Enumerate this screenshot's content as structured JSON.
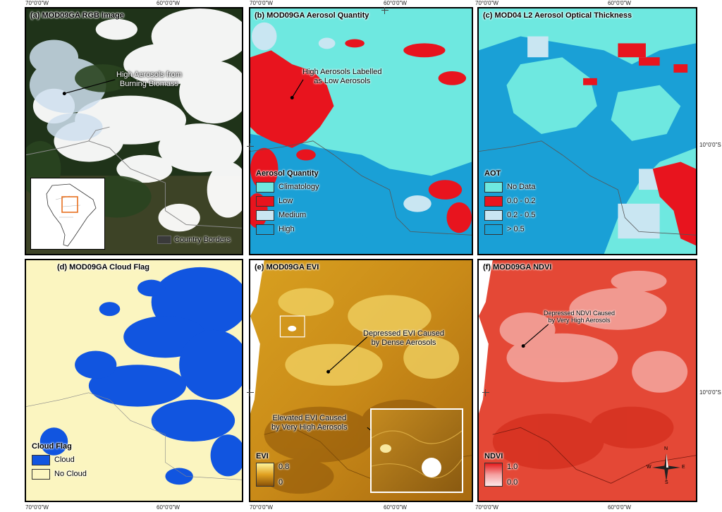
{
  "coords": {
    "lon_70": "70°0'0\"W",
    "lon_60": "60°0'0\"W",
    "lat_10": "10°0'0\"S"
  },
  "panels": {
    "a": {
      "title": "(a) MOD09GA RGB Image",
      "annotation": "High Aerosols from\nBurning Biomass",
      "border_label": "Country Borders"
    },
    "b": {
      "title": "(b) MOD09GA Aerosol Quantity",
      "annotation": "High Aerosols Labelled\nas Low Aerosols",
      "legend": {
        "title": "Aerosol Quantity",
        "items": [
          {
            "label": "Climatology",
            "color": "#6ee8e0"
          },
          {
            "label": "Low",
            "color": "#e8141e"
          },
          {
            "label": "Medium",
            "color": "#c9e6f2"
          },
          {
            "label": "High",
            "color": "#1aa0d6"
          }
        ]
      }
    },
    "c": {
      "title": "(c) MOD04 L2 Aerosol Optical Thickness",
      "legend": {
        "title": "AOT",
        "items": [
          {
            "label": "No Data",
            "color": "#6ee8e0"
          },
          {
            "label": "0.0 - 0.2",
            "color": "#e8141e"
          },
          {
            "label": "0.2 - 0.5",
            "color": "#c9e6f2"
          },
          {
            "label": "> 0.5",
            "color": "#1aa0d6"
          }
        ]
      }
    },
    "d": {
      "title": "(d) MOD09GA Cloud Flag",
      "legend": {
        "title": "Cloud Flag",
        "items": [
          {
            "label": "Cloud",
            "color": "#1155e0"
          },
          {
            "label": "No Cloud",
            "color": "#fbf5c0"
          }
        ]
      }
    },
    "e": {
      "title": "(e) MOD09GA EVI",
      "annotation1": "Depressed EVI Caused\nby Dense Aerosols",
      "annotation2": "Elevated EVI Caused\nby Very High Aerosols",
      "legend": {
        "title": "EVI",
        "max": "0.8",
        "min": "0"
      }
    },
    "f": {
      "title": "(f) MOD09GA NDVI",
      "annotation": "Depressed NDVI Caused\nby Very High Aerosols",
      "legend": {
        "title": "NDVI",
        "max": "1.0",
        "min": "0.0"
      },
      "compass": {
        "n": "N",
        "s": "S",
        "e": "E",
        "w": "W"
      }
    }
  },
  "colors": {
    "cyan": "#6ee8e0",
    "red": "#e8141e",
    "lightblue": "#c9e6f2",
    "blue": "#1aa0d6",
    "cloud": "#1155e0",
    "nocloud": "#fbf5c0"
  }
}
